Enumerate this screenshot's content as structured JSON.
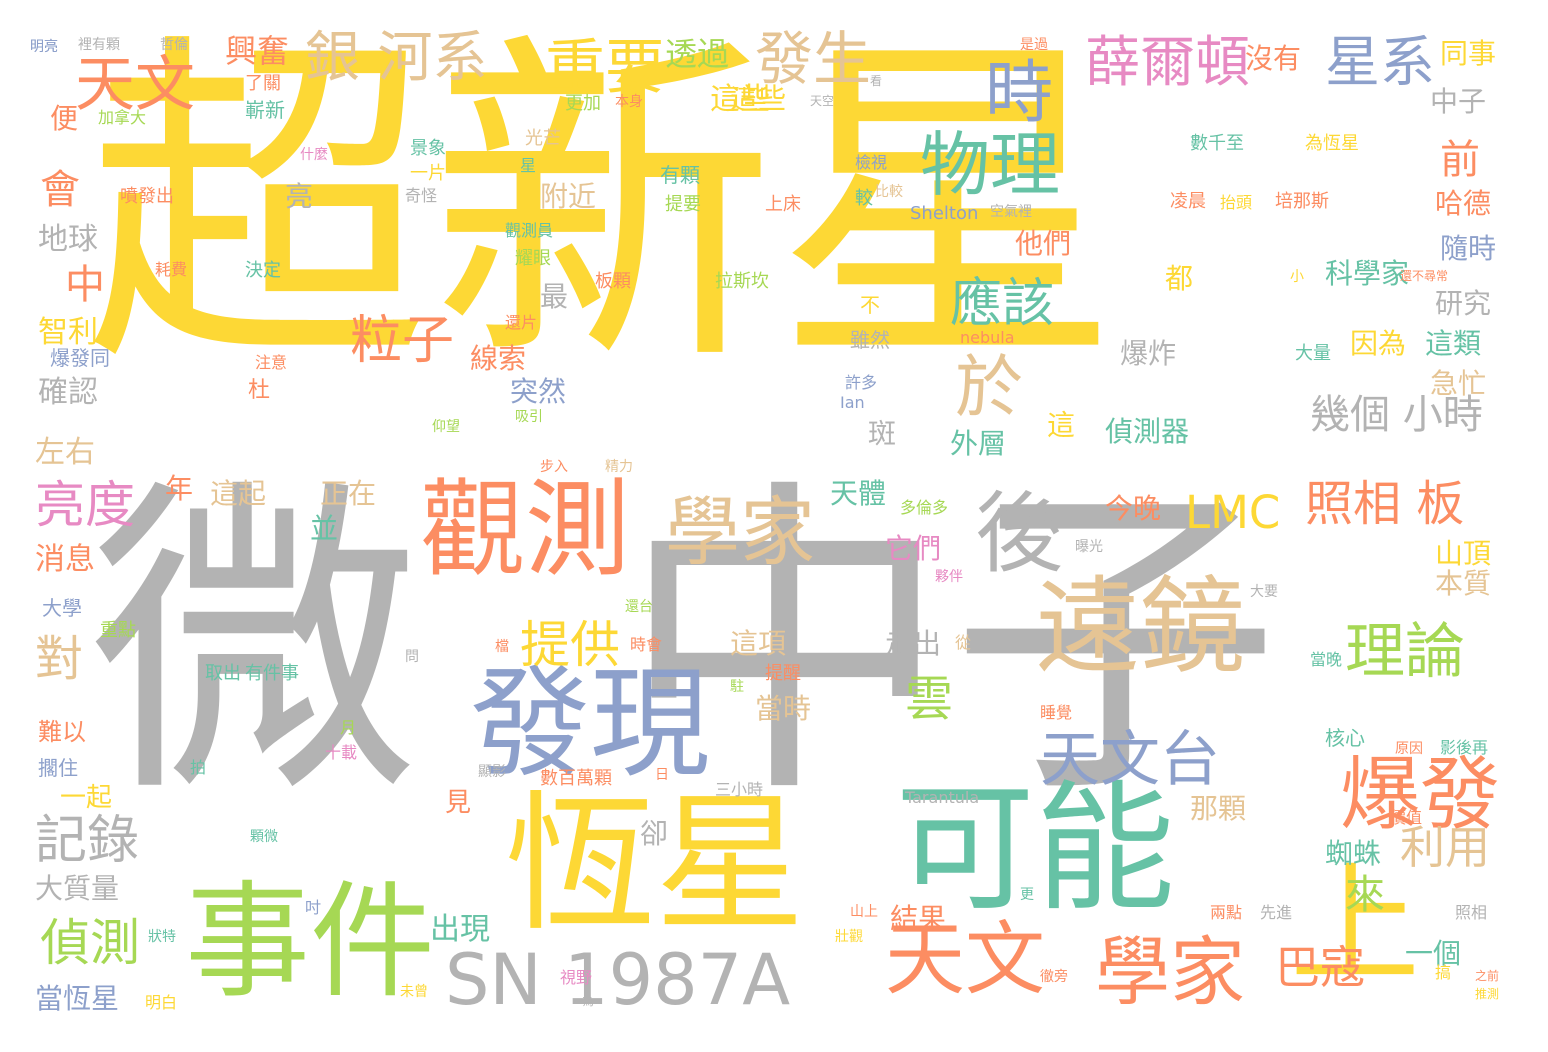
{
  "palette": {
    "yellow": "#fdd835",
    "gray": "#b3b3b3",
    "orange": "#fc8d62",
    "blue": "#8da0cb",
    "green": "#a6d854",
    "teal": "#66c2a5",
    "tan": "#e5c494",
    "pink": "#e78ac3"
  },
  "words": [
    "超新星",
    "微",
    "中子",
    "觀測",
    "恆星",
    "可能",
    "遠鏡",
    "事件",
    "後",
    "發現",
    "學家",
    "天文",
    "上",
    "SN 1987A",
    "物理",
    "時",
    "於",
    "爆發",
    "薛爾頓",
    "星系",
    "銀 河系",
    "重要",
    "發生",
    "天文台",
    "學家",
    "巴寇",
    "理論",
    "雲",
    "天文",
    "照相 板",
    "LMC",
    "提供",
    "粒子",
    "應該",
    "偵測",
    "記錄",
    "亮度",
    "對",
    "利用",
    "前",
    "中",
    "興奮",
    "透過",
    "這些",
    "幾個 小時",
    "會",
    "地球",
    "智利",
    "確認",
    "左右",
    "消息",
    "大學",
    "大質量",
    "當恆星",
    "一起",
    "難以",
    "擱住",
    "明亮",
    "沒有",
    "同事",
    "中子",
    "哈德",
    "隨時",
    "研究",
    "這類",
    "因為",
    "急忙",
    "大量",
    "本質",
    "山頂",
    "今晚",
    "偵測器",
    "爆炸",
    "科學家",
    "外層",
    "天體",
    "他們",
    "它們",
    "出現",
    "結果",
    "走出",
    "這項",
    "當時",
    "卻",
    "見",
    "並",
    "正在",
    "這起",
    "年",
    "突然",
    "線索",
    "最",
    "附近",
    "亮",
    "光芒",
    "一片",
    "景象",
    "奇怪",
    "噴發出",
    "耗費",
    "決定",
    "注意",
    "杜",
    "便",
    "加拿大",
    "嶄新",
    "了關",
    "更加",
    "本身",
    "有顆",
    "提要",
    "上床",
    "檢視",
    "較",
    "凌晨",
    "抬頭",
    "培那斯",
    "數千至",
    "為恆星",
    "Shelton",
    "空氣裡",
    "拉斯坎",
    "板顆",
    "觀測員",
    "耀眼",
    "還片",
    "吸引",
    "仰望",
    "步入",
    "精力",
    "取出",
    "有件事",
    "重點",
    "拍",
    "月",
    "十載",
    "日",
    "數百萬顆",
    "三小時",
    "顆微",
    "吋",
    "山上",
    "壯觀",
    "兩點",
    "先進",
    "照相",
    "之前",
    "推測",
    "影後再",
    "當晚",
    "原因",
    "價值",
    "核心",
    "那顆",
    "蜘蛛",
    "一個",
    "Tarantula",
    "nebula",
    "Ian",
    "許多",
    "雖然",
    "不",
    "小",
    "還不尋常",
    "從",
    "多倫多",
    "曝光",
    "夥伴",
    "大要",
    "還台",
    "時會",
    "檔",
    "問",
    "提醒",
    "駐",
    "睡覺",
    "顯影",
    "視野",
    "未曾",
    "為",
    "更",
    "這",
    "徹旁",
    "搞",
    "明白",
    "狀特",
    "爆發同",
    "什麼",
    "星",
    "比較",
    "看",
    "天空",
    "是過",
    "哲倫",
    "裡有顆",
    "明亮",
    "斑",
    "都",
    "這些",
    "來"
  ]
}
